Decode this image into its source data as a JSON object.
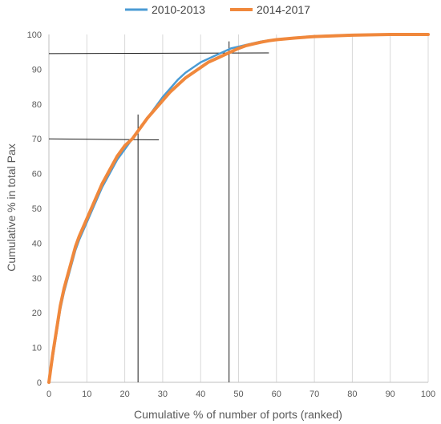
{
  "chart_data": {
    "type": "line",
    "xlabel": "Cumulative % of number of ports (ranked)",
    "ylabel": "Cumulative  % in total Pax",
    "xlim": [
      0,
      100
    ],
    "ylim": [
      0,
      100
    ],
    "xticks": [
      0,
      10,
      20,
      30,
      40,
      50,
      60,
      70,
      80,
      90,
      100
    ],
    "yticks": [
      0,
      10,
      20,
      30,
      40,
      50,
      60,
      70,
      80,
      90,
      100
    ],
    "grid": "vertical",
    "legend_position": "top",
    "series": [
      {
        "name": "2010-2013",
        "color": "#4a9bd4",
        "x": [
          0,
          1,
          2,
          3,
          4,
          5,
          6,
          7,
          8,
          10,
          12,
          14,
          16,
          18,
          20,
          22,
          24,
          26,
          28,
          30,
          32,
          34,
          36,
          38,
          40,
          42,
          44,
          46,
          48,
          50,
          52,
          54,
          56,
          58,
          60,
          65,
          70,
          75,
          80,
          90,
          100
        ],
        "y": [
          0,
          7,
          14,
          21,
          26,
          30,
          34,
          38,
          41,
          46,
          51,
          56,
          60,
          64,
          67,
          70,
          73,
          76,
          79,
          82,
          84.5,
          87,
          89,
          90.5,
          92,
          93,
          94,
          95,
          96,
          96.5,
          97,
          97.5,
          98,
          98.3,
          98.6,
          99.1,
          99.5,
          99.7,
          99.9,
          100,
          100
        ]
      },
      {
        "name": "2014-2017",
        "color": "#f0883c",
        "x": [
          0,
          1,
          2,
          3,
          4,
          5,
          6,
          7,
          8,
          10,
          12,
          14,
          16,
          18,
          20,
          22,
          24,
          26,
          28,
          30,
          32,
          34,
          36,
          38,
          40,
          42,
          44,
          46,
          48,
          50,
          52,
          54,
          56,
          58,
          60,
          65,
          70,
          75,
          80,
          90,
          100
        ],
        "y": [
          0,
          8,
          15,
          22,
          27,
          31,
          35,
          39,
          42,
          47,
          52,
          57,
          61,
          65,
          68,
          70,
          73,
          76,
          78.5,
          81,
          83.5,
          85.5,
          87.5,
          89,
          90.5,
          92,
          93,
          94,
          95,
          96,
          96.8,
          97.3,
          97.8,
          98.2,
          98.5,
          99,
          99.4,
          99.6,
          99.8,
          100,
          100
        ]
      }
    ],
    "reference_lines": [
      {
        "x1": 0,
        "y1": 70,
        "x2": 29,
        "y2": 69.7
      },
      {
        "x1": 23.5,
        "y1": 0,
        "x2": 23.5,
        "y2": 77
      },
      {
        "x1": 0,
        "y1": 94.5,
        "x2": 58,
        "y2": 94.7
      },
      {
        "x1": 47.5,
        "y1": 0,
        "x2": 47.5,
        "y2": 98
      }
    ]
  }
}
